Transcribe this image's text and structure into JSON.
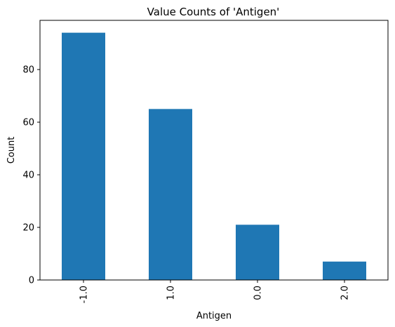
{
  "chart_data": {
    "type": "bar",
    "title": "Value Counts of 'Antigen'",
    "xlabel": "Antigen",
    "ylabel": "Count",
    "categories": [
      "-1.0",
      "1.0",
      "0.0",
      "2.0"
    ],
    "values": [
      94,
      65,
      21,
      7
    ],
    "ylim": [
      0,
      98.7
    ],
    "yticks": [
      "0",
      "20",
      "40",
      "60",
      "80"
    ],
    "ytick_values": [
      0,
      20,
      40,
      60,
      80
    ],
    "bar_color": "#1f77b4",
    "grid": false,
    "legend": false
  }
}
